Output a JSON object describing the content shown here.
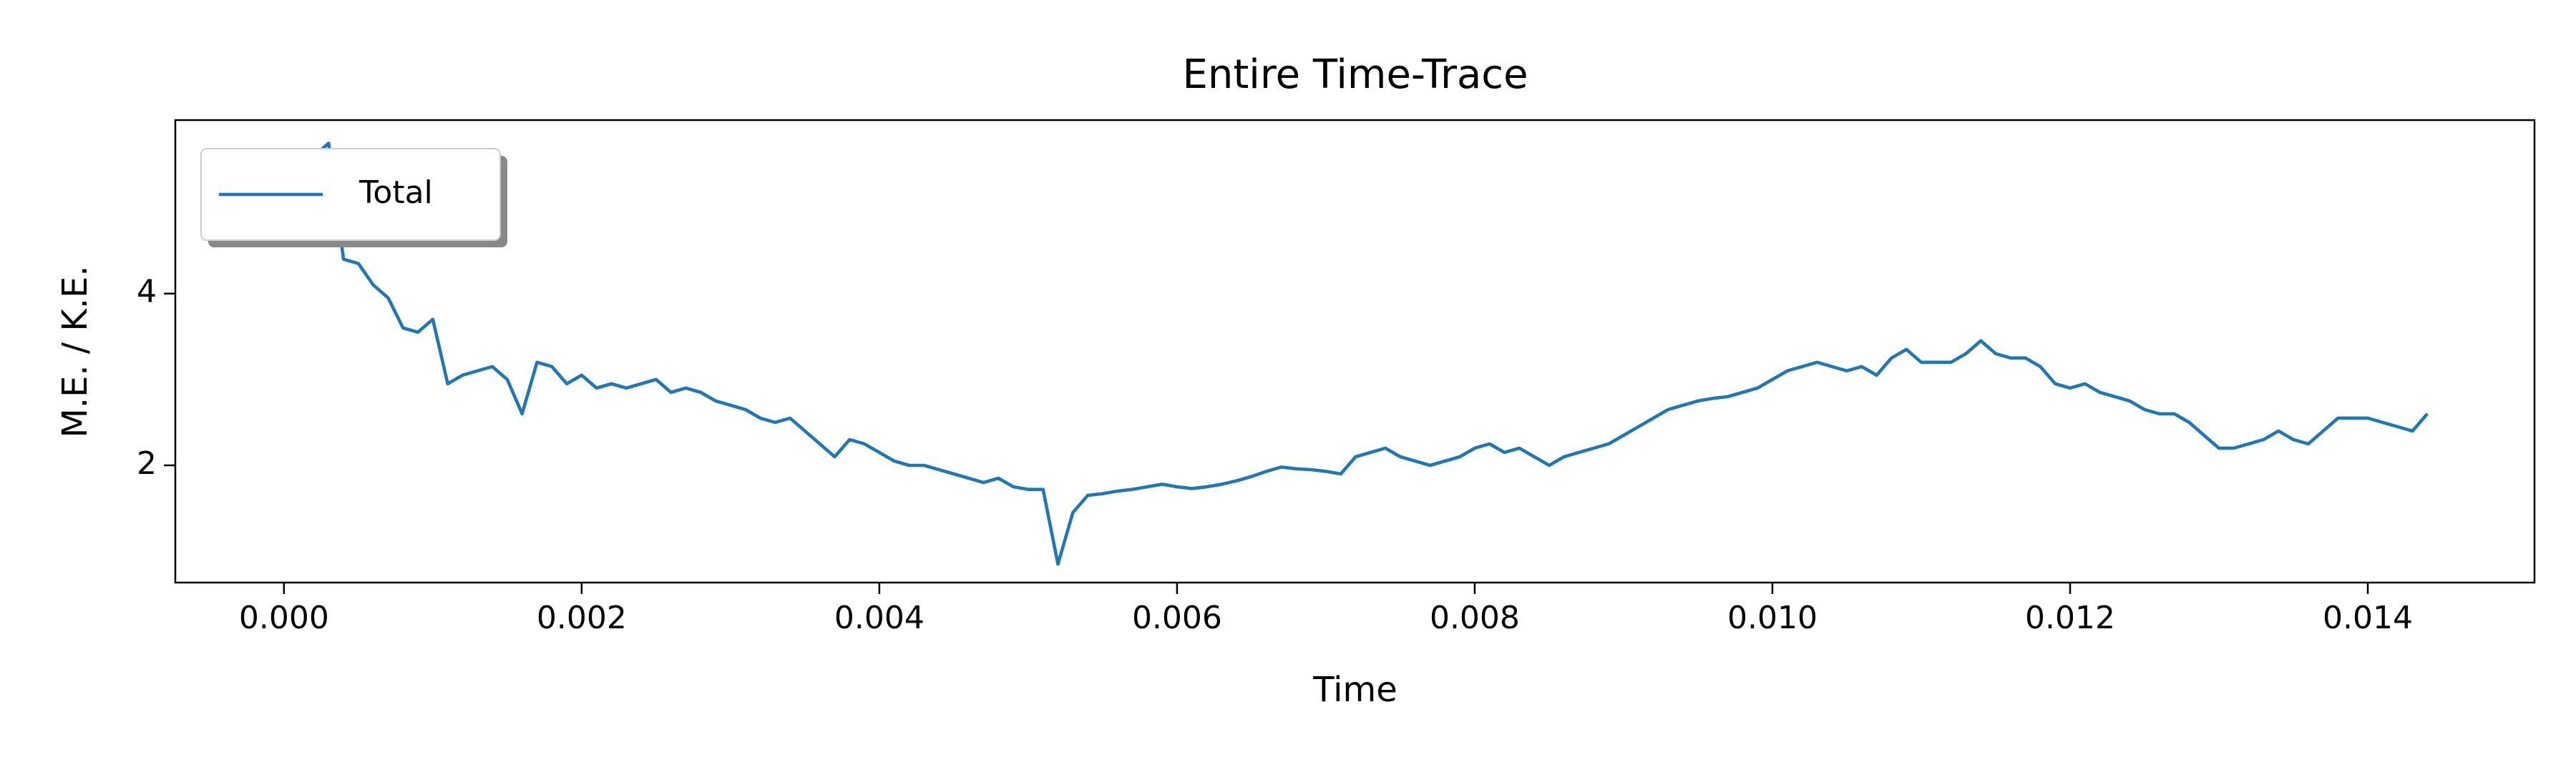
{
  "chart_data": {
    "type": "line",
    "title": "Entire Time-Trace",
    "xlabel": "Time",
    "ylabel": "M.E. / K.E.",
    "x": [
      0.0,
      0.0001,
      0.0002,
      0.0003,
      0.0004,
      0.0005,
      0.0006,
      0.0007,
      0.0008,
      0.0009,
      0.001,
      0.0011,
      0.0012,
      0.0013,
      0.0014,
      0.0015,
      0.0016,
      0.0017,
      0.0018,
      0.0019,
      0.002,
      0.0021,
      0.0022,
      0.0023,
      0.0024,
      0.0025,
      0.0026,
      0.0027,
      0.0028,
      0.0029,
      0.003,
      0.0031,
      0.0032,
      0.0033,
      0.0034,
      0.0035,
      0.0036,
      0.0037,
      0.0038,
      0.0039,
      0.004,
      0.0041,
      0.0042,
      0.0043,
      0.0044,
      0.0045,
      0.0046,
      0.0047,
      0.0048,
      0.0049,
      0.005,
      0.0051,
      0.0052,
      0.0053,
      0.0054,
      0.0055,
      0.0056,
      0.0057,
      0.0058,
      0.0059,
      0.006,
      0.0061,
      0.0062,
      0.0063,
      0.0064,
      0.0065,
      0.0066,
      0.0067,
      0.0068,
      0.0069,
      0.007,
      0.0071,
      0.0072,
      0.0073,
      0.0074,
      0.0075,
      0.0076,
      0.0077,
      0.0078,
      0.0079,
      0.008,
      0.0081,
      0.0082,
      0.0083,
      0.0084,
      0.0085,
      0.0086,
      0.0087,
      0.0088,
      0.0089,
      0.009,
      0.0091,
      0.0092,
      0.0093,
      0.0094,
      0.0095,
      0.0096,
      0.0097,
      0.0098,
      0.0099,
      0.01,
      0.0101,
      0.0102,
      0.0103,
      0.0104,
      0.0105,
      0.0106,
      0.0107,
      0.0108,
      0.0109,
      0.011,
      0.0111,
      0.0112,
      0.0113,
      0.0114,
      0.0115,
      0.0116,
      0.0117,
      0.0118,
      0.0119,
      0.012,
      0.0121,
      0.0122,
      0.0123,
      0.0124,
      0.0125,
      0.0126,
      0.0127,
      0.0128,
      0.0129,
      0.013,
      0.0131,
      0.0132,
      0.0133,
      0.0134,
      0.0135,
      0.0136,
      0.0137,
      0.0138,
      0.0139,
      0.014,
      0.0141,
      0.0142,
      0.0143,
      0.0144
    ],
    "series": [
      {
        "name": "Total",
        "color": "#1f77b4",
        "values": [
          5.2,
          5.4,
          5.6,
          5.75,
          4.4,
          4.35,
          4.1,
          3.95,
          3.6,
          3.55,
          3.7,
          2.95,
          3.05,
          3.1,
          3.15,
          3.0,
          2.6,
          3.2,
          3.15,
          2.95,
          3.05,
          2.9,
          2.95,
          2.9,
          2.95,
          3.0,
          2.85,
          2.9,
          2.85,
          2.75,
          2.7,
          2.65,
          2.55,
          2.5,
          2.55,
          2.4,
          2.25,
          2.1,
          2.3,
          2.25,
          2.15,
          2.05,
          2.0,
          2.0,
          1.95,
          1.9,
          1.85,
          1.8,
          1.85,
          1.75,
          1.72,
          1.72,
          0.85,
          1.45,
          1.65,
          1.67,
          1.7,
          1.72,
          1.75,
          1.78,
          1.75,
          1.73,
          1.75,
          1.78,
          1.82,
          1.87,
          1.93,
          1.98,
          1.96,
          1.95,
          1.93,
          1.9,
          2.1,
          2.15,
          2.2,
          2.1,
          2.05,
          2.0,
          2.05,
          2.1,
          2.2,
          2.25,
          2.15,
          2.2,
          2.1,
          2.0,
          2.1,
          2.15,
          2.2,
          2.25,
          2.35,
          2.45,
          2.55,
          2.65,
          2.7,
          2.75,
          2.78,
          2.8,
          2.85,
          2.9,
          3.0,
          3.1,
          3.15,
          3.2,
          3.15,
          3.1,
          3.15,
          3.05,
          3.25,
          3.35,
          3.2,
          3.2,
          3.2,
          3.3,
          3.45,
          3.3,
          3.25,
          3.25,
          3.15,
          2.95,
          2.9,
          2.95,
          2.85,
          2.8,
          2.75,
          2.65,
          2.6,
          2.6,
          2.5,
          2.35,
          2.2,
          2.2,
          2.25,
          2.3,
          2.4,
          2.3,
          2.25,
          2.4,
          2.55,
          2.55,
          2.55,
          2.5,
          2.45,
          2.4,
          2.6
        ]
      }
    ],
    "xlim": [
      -0.00073,
      0.01512
    ],
    "ylim": [
      0.635,
      6.02
    ],
    "xticks": [
      {
        "value": 0,
        "label": "0.000"
      },
      {
        "value": 0.002,
        "label": "0.002"
      },
      {
        "value": 0.004,
        "label": "0.004"
      },
      {
        "value": 0.006,
        "label": "0.006"
      },
      {
        "value": 0.008,
        "label": "0.008"
      },
      {
        "value": 0.01,
        "label": "0.010"
      },
      {
        "value": 0.012,
        "label": "0.012"
      },
      {
        "value": 0.014,
        "label": "0.014"
      }
    ],
    "yticks": [
      2,
      4
    ],
    "grid": false,
    "legend": "upper-left"
  }
}
